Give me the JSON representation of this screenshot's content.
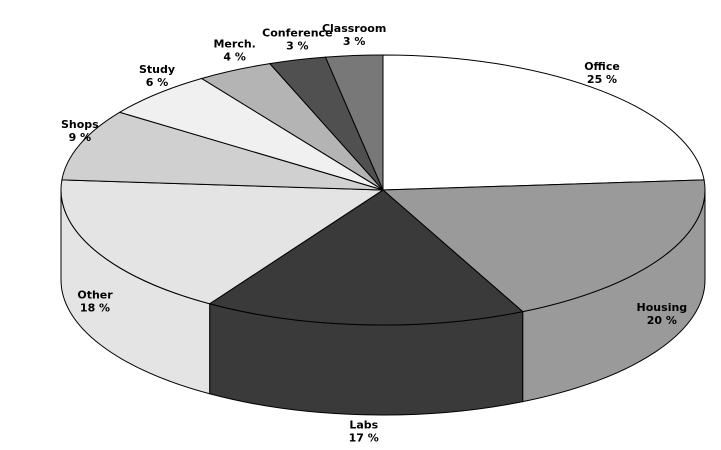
{
  "chart_data": {
    "type": "pie3d",
    "categories": [
      "Office",
      "Housing",
      "Labs",
      "Other",
      "Shops",
      "Study",
      "Merch.",
      "Conference",
      "Classroom"
    ],
    "values": [
      25,
      20,
      17,
      18,
      9,
      6,
      4,
      3,
      3
    ],
    "value_labels": [
      "25 %",
      "20 %",
      "17 %",
      "18 %",
      "9 %",
      "6 %",
      "4 %",
      "3 %",
      "3 %"
    ],
    "colors": [
      "#ffffff",
      "#9a9a9a",
      "#3a3a3a",
      "#e4e4e4",
      "#d0d0d0",
      "#f0f0f0",
      "#b4b4b4",
      "#505050",
      "#787878"
    ]
  }
}
